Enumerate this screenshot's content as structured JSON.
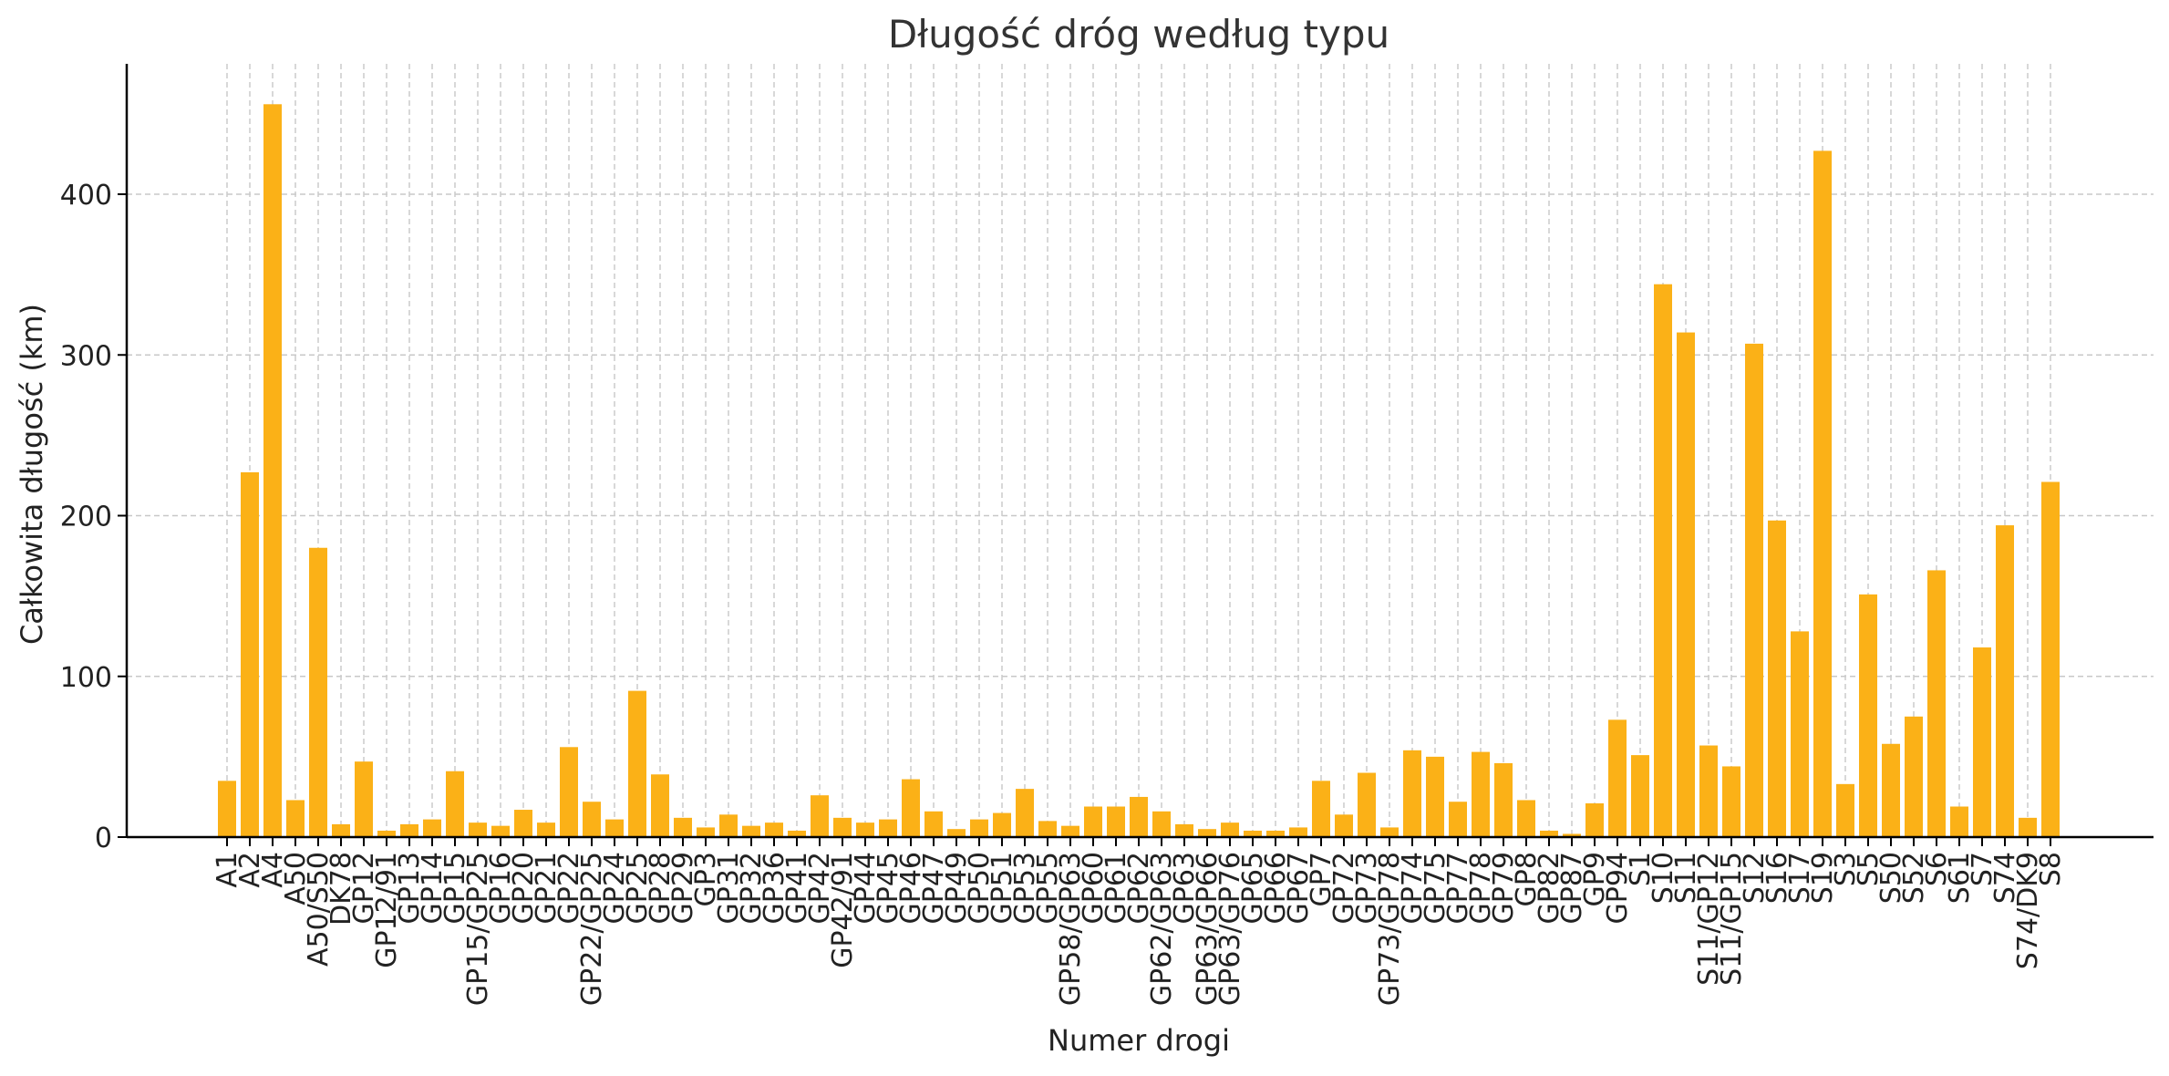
{
  "chart_data": {
    "type": "bar",
    "title": "Długość dróg według typu",
    "xlabel": "Numer drogi",
    "ylabel": "Całkowita długość (km)",
    "ylim": [
      0,
      480
    ],
    "yticks": [
      0,
      100,
      200,
      300,
      400
    ],
    "grid": true,
    "bar_color": "#FBB117",
    "categories": [
      "A1",
      "A2",
      "A4",
      "A50",
      "A50/S50",
      "DK78",
      "GP12",
      "GP12/91",
      "GP13",
      "GP14",
      "GP15",
      "GP15/GP25",
      "GP16",
      "GP20",
      "GP21",
      "GP22",
      "GP22/GP25",
      "GP24",
      "GP25",
      "GP28",
      "GP29",
      "GP3",
      "GP31",
      "GP32",
      "GP36",
      "GP41",
      "GP42",
      "GP42/91",
      "GP44",
      "GP45",
      "GP46",
      "GP47",
      "GP49",
      "GP50",
      "GP51",
      "GP53",
      "GP55",
      "GP58/GP63",
      "GP60",
      "GP61",
      "GP62",
      "GP62/GP63",
      "GP63",
      "GP63/GP66",
      "GP63/GP76",
      "GP65",
      "GP66",
      "GP67",
      "GP7",
      "GP72",
      "GP73",
      "GP73/GP78",
      "GP74",
      "GP75",
      "GP77",
      "GP78",
      "GP79",
      "GP8",
      "GP82",
      "GP87",
      "GP9",
      "GP94",
      "S1",
      "S10",
      "S11",
      "S11/GP12",
      "S11/GP15",
      "S12",
      "S16",
      "S17",
      "S19",
      "S3",
      "S5",
      "S50",
      "S52",
      "S6",
      "S61",
      "S7",
      "S74",
      "S74/DK9",
      "S8"
    ],
    "values": [
      35,
      227,
      456,
      23,
      180,
      8,
      47,
      4,
      8,
      11,
      41,
      9,
      7,
      17,
      9,
      56,
      22,
      11,
      91,
      39,
      12,
      6,
      14,
      7,
      9,
      4,
      26,
      12,
      9,
      11,
      36,
      16,
      5,
      11,
      15,
      30,
      10,
      7,
      19,
      19,
      25,
      16,
      8,
      5,
      9,
      4,
      4,
      6,
      35,
      14,
      40,
      6,
      54,
      50,
      22,
      53,
      46,
      23,
      4,
      2,
      21,
      73,
      51,
      344,
      314,
      57,
      44,
      307,
      197,
      128,
      427,
      33,
      151,
      58,
      75,
      166,
      19,
      118,
      194,
      12,
      221
    ]
  }
}
